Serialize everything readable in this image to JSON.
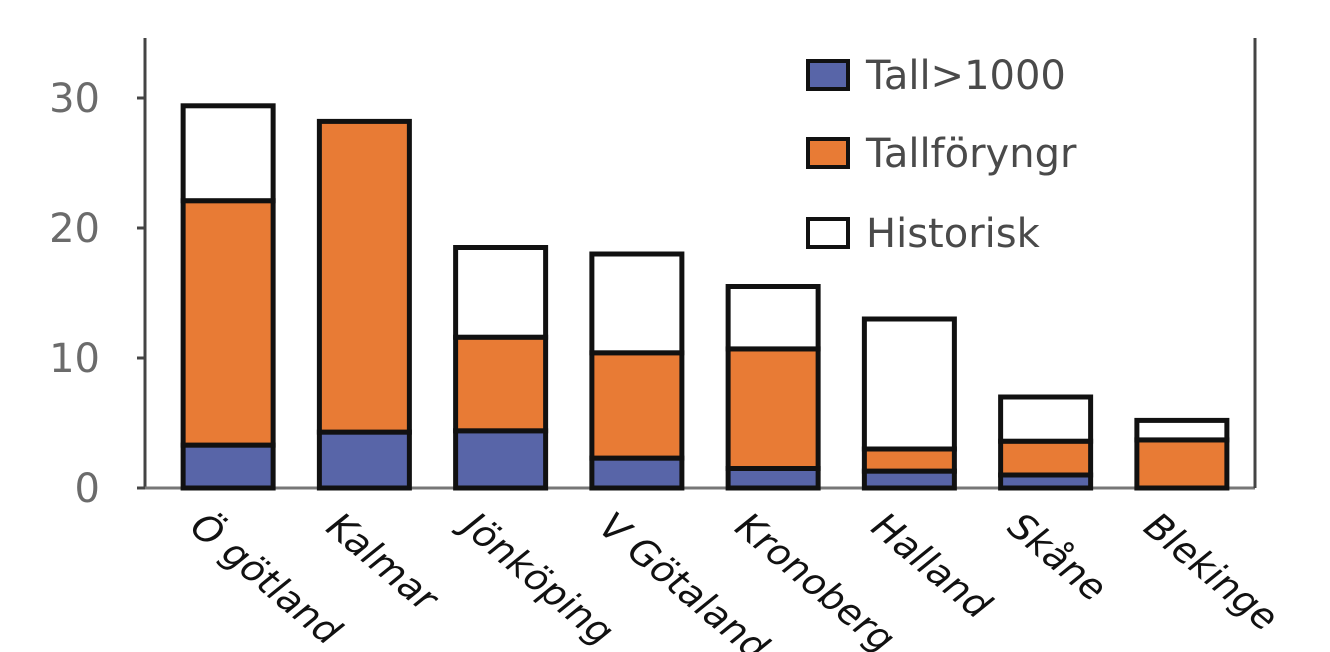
{
  "chart_data": {
    "type": "bar",
    "stacked": true,
    "categories": [
      "Ö götland",
      "Kalmar",
      "Jönköping",
      "V Götaland",
      "Kronoberg",
      "Halland",
      "Skåne",
      "Blekinge"
    ],
    "series": [
      {
        "name": "Tall>1000",
        "color": "#5865a8",
        "values": [
          3.3,
          4.3,
          4.4,
          2.3,
          1.5,
          1.3,
          1.0,
          0
        ]
      },
      {
        "name": "Tallföryngr",
        "color": "#e87b35",
        "values": [
          18.8,
          23.9,
          7.2,
          8.1,
          9.2,
          1.7,
          2.6,
          3.7
        ]
      },
      {
        "name": "Historisk",
        "color": "#ffffff",
        "values": [
          7.3,
          0,
          6.9,
          7.6,
          4.8,
          10.0,
          3.4,
          1.5
        ]
      }
    ],
    "yticks": [
      0,
      10,
      20,
      30
    ],
    "ylim": [
      0,
      35
    ],
    "legend_position": "top-right",
    "grid": false,
    "xlabel": "",
    "ylabel": "",
    "title": ""
  }
}
